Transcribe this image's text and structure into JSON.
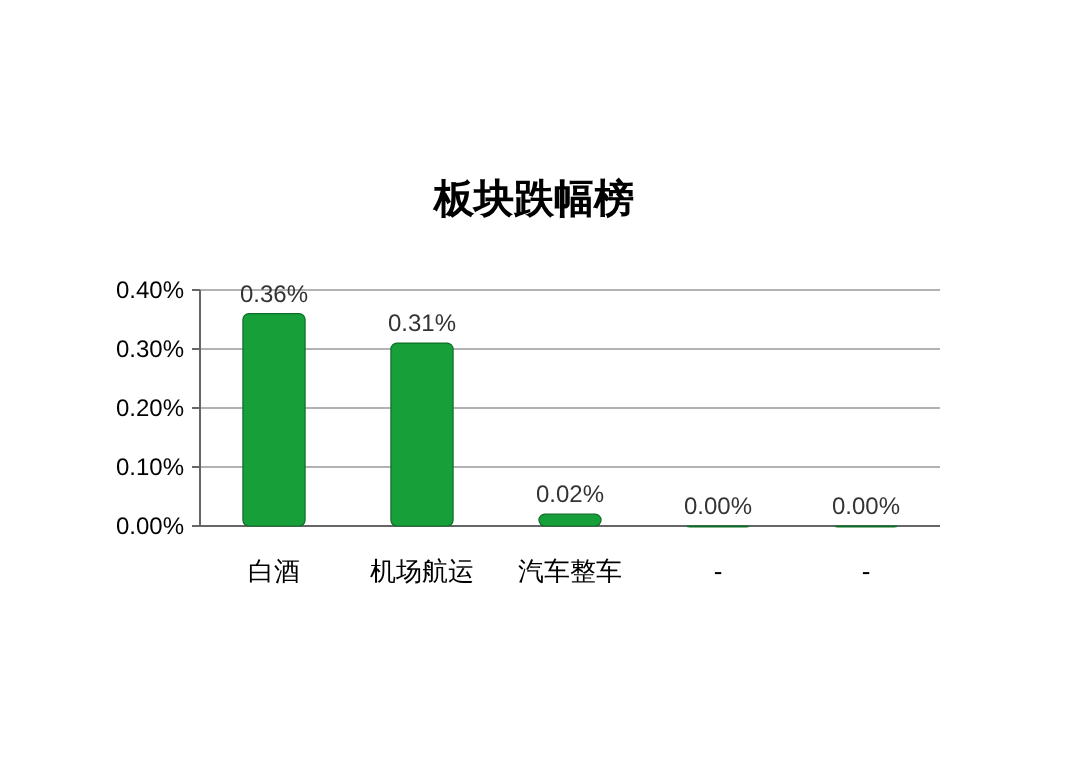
{
  "chart_data": {
    "type": "bar",
    "title": "板块跌幅榜",
    "categories": [
      "白酒",
      "机场航运",
      "汽车整车",
      "-",
      "-"
    ],
    "values": [
      0.36,
      0.31,
      0.02,
      0.0,
      0.0
    ],
    "value_labels": [
      "0.36%",
      "0.31%",
      "0.02%",
      "0.00%",
      "0.00%"
    ],
    "color": "#17a03a",
    "ylim": [
      0,
      0.4
    ],
    "yticks": [
      {
        "value": 0,
        "label": "0.00%"
      },
      {
        "value": 0.1,
        "label": "0.10%"
      },
      {
        "value": 0.2,
        "label": "0.20%"
      },
      {
        "value": 0.3,
        "label": "0.30%"
      },
      {
        "value": 0.4,
        "label": "0.40%"
      }
    ],
    "grid": "y"
  }
}
